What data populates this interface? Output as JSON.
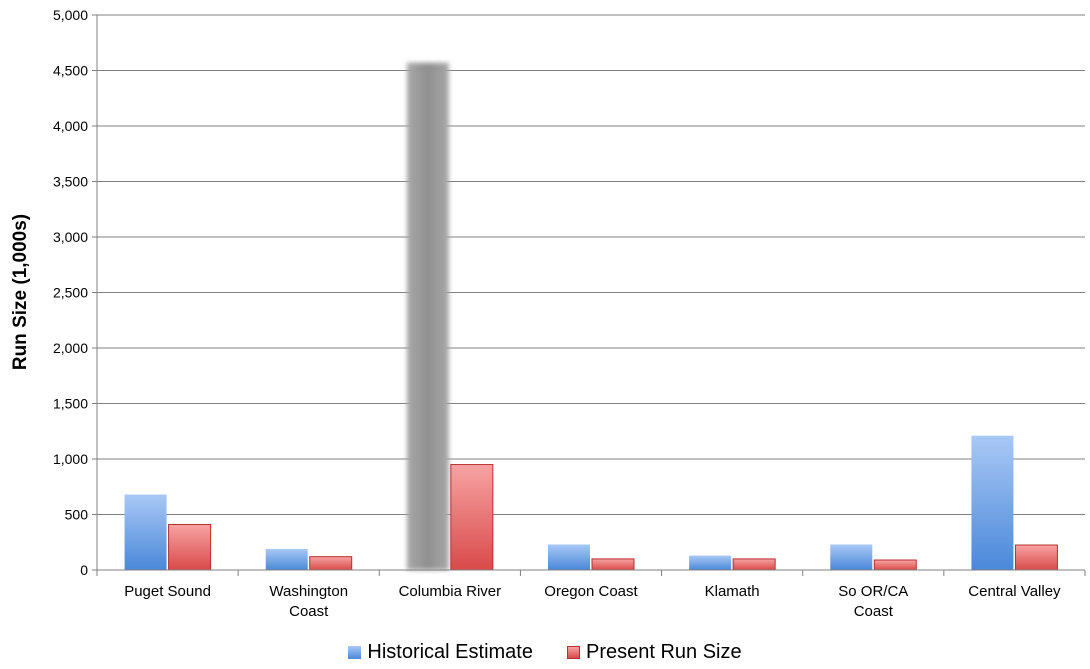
{
  "chart_data": {
    "type": "bar",
    "title": "",
    "xlabel": "",
    "ylabel": "Run Size (1,000s)",
    "ylim": [
      0,
      5000
    ],
    "yticks": [
      "0",
      "500",
      "1,000",
      "1,500",
      "2,000",
      "2,500",
      "3,000",
      "3,500",
      "4,000",
      "4,500",
      "5,000"
    ],
    "categories": [
      [
        "Puget Sound"
      ],
      [
        "Washington",
        "Coast"
      ],
      [
        "Columbia River"
      ],
      [
        "Oregon Coast"
      ],
      [
        "Klamath"
      ],
      [
        "So OR/CA",
        "Coast"
      ],
      [
        "Central Valley"
      ]
    ],
    "series": [
      {
        "name": "Historical Estimate",
        "values": [
          680,
          190,
          4570,
          230,
          130,
          230,
          1210
        ]
      },
      {
        "name": "Present Run Size",
        "values": [
          410,
          120,
          950,
          100,
          100,
          90,
          225
        ]
      }
    ],
    "grid": true,
    "legend_position": "bottom",
    "colors": {
      "historical_top": "#a9c8f5",
      "historical_bottom": "#4a88d9",
      "present_top": "#f7a3a3",
      "present_bottom": "#d94a4a",
      "present_border": "#b83030",
      "highlight": "#999999",
      "gridline": "#808080"
    }
  }
}
